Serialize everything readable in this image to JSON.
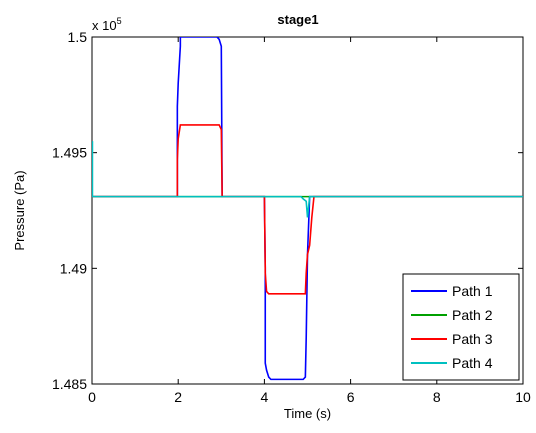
{
  "chart_data": {
    "type": "line",
    "title": "stage1",
    "xlabel": "Time (s)",
    "ylabel": "Pressure (Pa)",
    "xlim": [
      0,
      10
    ],
    "ylim": [
      148500,
      150000
    ],
    "x_ticks": [
      0,
      2,
      4,
      6,
      8,
      10
    ],
    "x_tick_labels": [
      "0",
      "2",
      "4",
      "6",
      "8",
      "10"
    ],
    "y_ticks": [
      148500,
      149000,
      149500,
      150000
    ],
    "y_tick_labels": [
      "1.485",
      "1.49",
      "1.495",
      "1.5"
    ],
    "y_multiplier": "x 10",
    "y_multiplier_exponent": "5",
    "grid": false,
    "legend_position": "bottom-right",
    "series": [
      {
        "name": "Path 1",
        "color": "#0000ff",
        "x": [
          0,
          1.98,
          1.98,
          2.0,
          2.05,
          2.05,
          2.9,
          2.95,
          3.0,
          3.02,
          4.0,
          4.02,
          4.02,
          4.05,
          4.1,
          4.15,
          4.9,
          4.95,
          4.97,
          5.0,
          5.05,
          10
        ],
        "y": [
          149310,
          149310,
          149700,
          149800,
          149960,
          150000,
          150000,
          149990,
          149960,
          149310,
          149310,
          149000,
          148590,
          148560,
          148530,
          148520,
          148520,
          148530,
          148700,
          149060,
          149310,
          149310
        ]
      },
      {
        "name": "Path 2",
        "color": "#00a000",
        "x": [
          0,
          10
        ],
        "y": [
          149310,
          149310
        ]
      },
      {
        "name": "Path 3",
        "color": "#ff0000",
        "x": [
          0,
          1.98,
          1.98,
          2.0,
          2.05,
          2.05,
          2.95,
          3.0,
          3.02,
          4.0,
          4.02,
          4.02,
          4.05,
          4.1,
          4.15,
          4.95,
          4.97,
          5.0,
          5.05,
          5.1,
          5.15,
          10
        ],
        "y": [
          149310,
          149310,
          149470,
          149560,
          149620,
          149620,
          149620,
          149600,
          149310,
          149310,
          149000,
          148980,
          148900,
          148890,
          148890,
          148890,
          148980,
          149060,
          149100,
          149220,
          149310,
          149310
        ]
      },
      {
        "name": "Path 4",
        "color": "#00c0c0",
        "x": [
          0,
          0.01,
          0.01,
          0.05,
          4.85,
          4.9,
          4.97,
          5.0,
          5.05,
          10
        ],
        "y": [
          149310,
          149550,
          149310,
          149310,
          149310,
          149300,
          149290,
          149220,
          149310,
          149310
        ]
      }
    ]
  }
}
